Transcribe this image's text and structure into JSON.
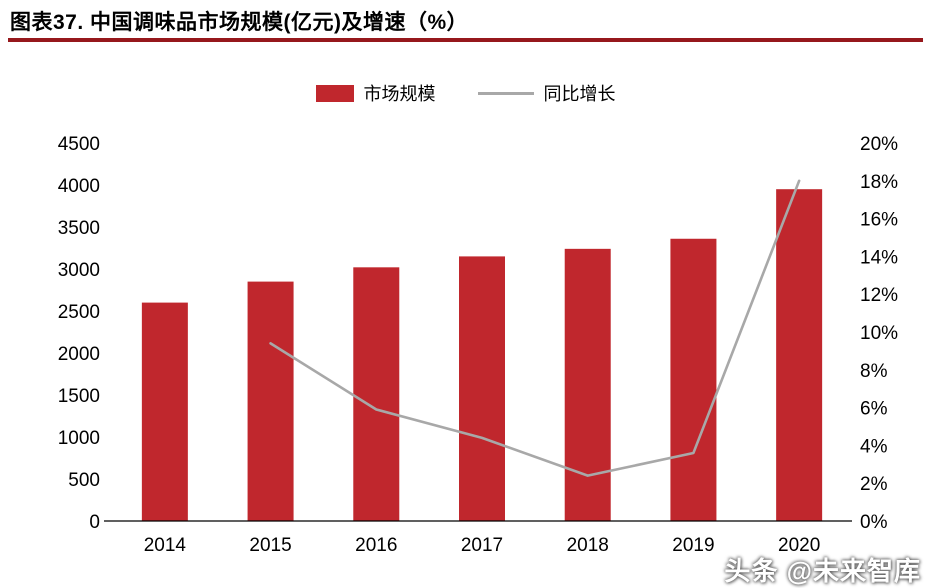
{
  "header": {
    "title": "图表37. 中国调味品市场规模(亿元)及增速（%）"
  },
  "legend": {
    "items": [
      {
        "label": "市场规模",
        "type": "bar",
        "color": "#c0272d"
      },
      {
        "label": "同比增长",
        "type": "line",
        "color": "#a8a8a8"
      }
    ]
  },
  "watermark": {
    "text": "头条 @未来智库"
  },
  "colors": {
    "bar": "#c0272d",
    "line": "#a8a8a8",
    "title_rule": "#96181c",
    "axis": "#000000"
  },
  "chart_data": {
    "type": "bar",
    "subtype": "bar+line combo, dual y-axis",
    "title": "中国调味品市场规模(亿元)及增速（%）",
    "categories": [
      "2014",
      "2015",
      "2016",
      "2017",
      "2018",
      "2019",
      "2020"
    ],
    "series": [
      {
        "name": "市场规模",
        "type": "bar",
        "axis": "left",
        "color": "#c0272d",
        "values": [
          2600,
          2850,
          3020,
          3150,
          3240,
          3360,
          3950
        ]
      },
      {
        "name": "同比增长",
        "type": "line",
        "axis": "right",
        "color": "#a8a8a8",
        "values": [
          null,
          9.4,
          5.9,
          4.4,
          2.4,
          3.6,
          18.0
        ]
      }
    ],
    "left_axis": {
      "min": 0,
      "max": 4500,
      "step": 500,
      "suffix": ""
    },
    "right_axis": {
      "min": 0,
      "max": 20,
      "step": 2,
      "suffix": "%"
    },
    "xlabel": "",
    "ylabel_left": "",
    "ylabel_right": "",
    "grid": false,
    "legend_position": "top"
  }
}
